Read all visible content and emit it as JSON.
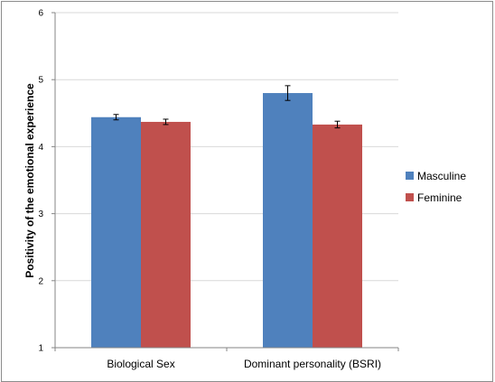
{
  "chart_data": {
    "type": "bar",
    "title": "",
    "xlabel": "",
    "ylabel": "Positivity of the emotional experience",
    "ylim": [
      1,
      6
    ],
    "yticks": [
      1,
      2,
      3,
      4,
      5,
      6
    ],
    "grid": true,
    "legend_position": "right",
    "categories": [
      "Biological Sex",
      "Dominant personality (BSRI)"
    ],
    "series": [
      {
        "name": "Masculine",
        "color": "#4f81bd",
        "values": [
          4.44,
          4.8
        ],
        "errors": [
          0.04,
          0.11
        ]
      },
      {
        "name": "Feminine",
        "color": "#c0504d",
        "values": [
          4.37,
          4.33
        ],
        "errors": [
          0.04,
          0.05
        ]
      }
    ]
  }
}
